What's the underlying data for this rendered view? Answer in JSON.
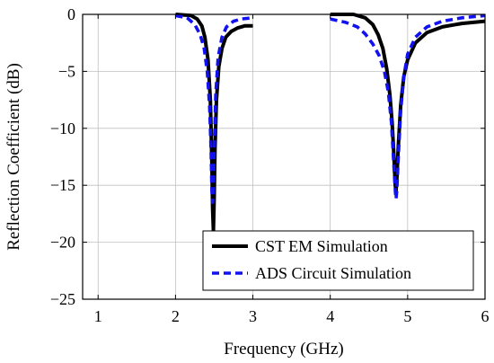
{
  "chart_data": {
    "type": "line",
    "title": "",
    "xlabel": "Frequency (GHz)",
    "ylabel": "Reflection Coefficient (dB)",
    "xlim": [
      0.8,
      6.0
    ],
    "ylim": [
      -25,
      0
    ],
    "xticks": [
      1,
      2,
      3,
      4,
      5,
      6
    ],
    "xtick_labels": [
      "1",
      "2",
      "3",
      "4",
      "5",
      "6"
    ],
    "yticks": [
      0,
      -5,
      -10,
      -15,
      -20,
      -25
    ],
    "ytick_labels": [
      "0",
      "−5",
      "−10",
      "−15",
      "−20",
      "−25"
    ],
    "grid": true,
    "legend_position": "bottom-right",
    "series": [
      {
        "name": "CST EM Simulation",
        "color": "#000000",
        "style": "solid",
        "segments": [
          {
            "x": [
              2.0,
              2.2,
              2.28,
              2.34,
              2.38,
              2.42,
              2.45,
              2.47,
              2.48,
              2.49,
              2.5,
              2.51,
              2.53,
              2.56,
              2.6,
              2.65,
              2.72,
              2.8,
              2.9,
              3.0
            ],
            "y": [
              0,
              -0.1,
              -0.4,
              -1.0,
              -2.0,
              -4.0,
              -7.5,
              -13,
              -17,
              -19,
              -16,
              -12,
              -7.5,
              -4.6,
              -3.0,
              -2.0,
              -1.5,
              -1.2,
              -1.0,
              -1.0
            ]
          },
          {
            "x": [
              4.0,
              4.3,
              4.45,
              4.55,
              4.62,
              4.68,
              4.73,
              4.77,
              4.8,
              4.82,
              4.84,
              4.85,
              4.86,
              4.88,
              4.91,
              4.95,
              5.0,
              5.1,
              5.25,
              5.45,
              5.7,
              6.0
            ],
            "y": [
              0,
              0,
              -0.3,
              -0.9,
              -1.8,
              -3.0,
              -4.8,
              -7.0,
              -9.5,
              -12,
              -15,
              -15.5,
              -14.5,
              -11.5,
              -8.0,
              -5.5,
              -4.0,
              -2.5,
              -1.6,
              -1.1,
              -0.8,
              -0.6
            ]
          }
        ]
      },
      {
        "name": "ADS Circuit Simulation",
        "color": "#1212f0",
        "style": "dashed",
        "segments": [
          {
            "x": [
              2.0,
              2.15,
              2.25,
              2.32,
              2.37,
              2.41,
              2.44,
              2.46,
              2.47,
              2.48,
              2.49,
              2.5,
              2.52,
              2.55,
              2.6,
              2.66,
              2.75,
              2.85,
              3.0
            ],
            "y": [
              -0.1,
              -0.3,
              -0.9,
              -1.8,
              -3.0,
              -5.0,
              -8.0,
              -12,
              -15.5,
              -16.5,
              -15.5,
              -12,
              -7.0,
              -3.8,
              -2.0,
              -1.1,
              -0.6,
              -0.4,
              -0.3
            ]
          },
          {
            "x": [
              4.0,
              4.2,
              4.35,
              4.45,
              4.55,
              4.63,
              4.7,
              4.75,
              4.79,
              4.82,
              4.84,
              4.85,
              4.86,
              4.88,
              4.91,
              4.95,
              5.0,
              5.1,
              5.25,
              5.45,
              5.7,
              6.0
            ],
            "y": [
              -0.4,
              -0.7,
              -1.1,
              -1.7,
              -2.6,
              -3.6,
              -5.0,
              -6.8,
              -9.5,
              -13,
              -15.5,
              -16.2,
              -15.5,
              -12.5,
              -8.5,
              -5.5,
              -3.5,
              -2.0,
              -1.1,
              -0.6,
              -0.3,
              -0.1
            ]
          }
        ]
      }
    ]
  }
}
